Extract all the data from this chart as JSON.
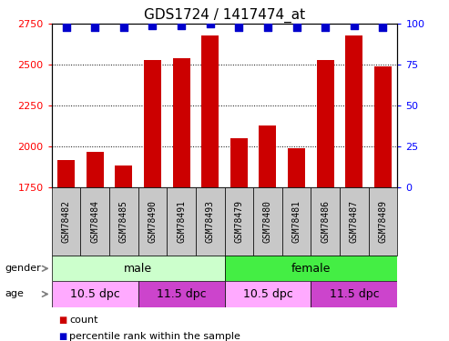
{
  "title": "GDS1724 / 1417474_at",
  "samples": [
    "GSM78482",
    "GSM78484",
    "GSM78485",
    "GSM78490",
    "GSM78491",
    "GSM78493",
    "GSM78479",
    "GSM78480",
    "GSM78481",
    "GSM78486",
    "GSM78487",
    "GSM78489"
  ],
  "counts": [
    1920,
    1970,
    1885,
    2530,
    2540,
    2680,
    2050,
    2130,
    1990,
    2530,
    2680,
    2490
  ],
  "percentile_ranks": [
    98,
    98,
    98,
    99,
    99,
    100,
    98,
    98,
    98,
    98,
    99,
    98
  ],
  "bar_bottom": 1750,
  "ylim_left": [
    1750,
    2750
  ],
  "ylim_right": [
    0,
    100
  ],
  "yticks_left": [
    1750,
    2000,
    2250,
    2500,
    2750
  ],
  "yticks_right": [
    0,
    25,
    50,
    75,
    100
  ],
  "bar_color": "#cc0000",
  "dot_color": "#0000cc",
  "gender_groups": [
    {
      "label": "male",
      "start": 0,
      "end": 6,
      "color": "#ccffcc"
    },
    {
      "label": "female",
      "start": 6,
      "end": 12,
      "color": "#44ee44"
    }
  ],
  "age_groups": [
    {
      "label": "10.5 dpc",
      "start": 0,
      "end": 3,
      "color": "#ffaaff"
    },
    {
      "label": "11.5 dpc",
      "start": 3,
      "end": 6,
      "color": "#cc44cc"
    },
    {
      "label": "10.5 dpc",
      "start": 6,
      "end": 9,
      "color": "#ffaaff"
    },
    {
      "label": "11.5 dpc",
      "start": 9,
      "end": 12,
      "color": "#cc44cc"
    }
  ],
  "legend_items": [
    {
      "label": "count",
      "color": "#cc0000"
    },
    {
      "label": "percentile rank within the sample",
      "color": "#0000cc"
    }
  ],
  "dot_size": 35,
  "xticklabel_fontsize": 7,
  "yticklabel_fontsize": 8,
  "title_fontsize": 11,
  "xtick_bg_color": "#c8c8c8",
  "spine_color": "#000000"
}
